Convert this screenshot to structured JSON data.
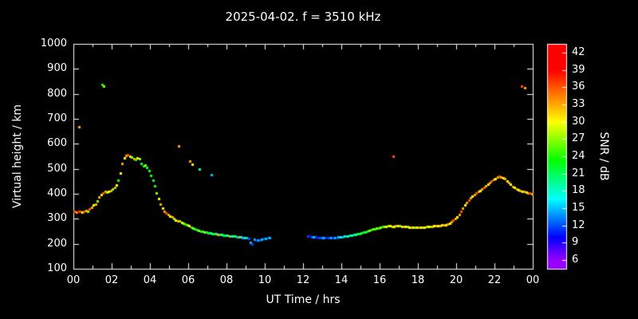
{
  "title": "2025-04-02. f = 3510 kHz",
  "colors": {
    "background": "#000000",
    "foreground": "#ffffff"
  },
  "chart_data": {
    "type": "scatter",
    "title": "2025-04-02. f = 3510 kHz",
    "xlabel": "UT Time / hrs",
    "ylabel": "Virtual height / km",
    "cblabel": "SNR / dB",
    "xlim": [
      0,
      24
    ],
    "ylim": [
      100,
      1000
    ],
    "grid": false,
    "legend": "colorbar-right",
    "x_ticks": [
      [
        0,
        "00"
      ],
      [
        2,
        "02"
      ],
      [
        4,
        "04"
      ],
      [
        6,
        "06"
      ],
      [
        8,
        "08"
      ],
      [
        10,
        "10"
      ],
      [
        12,
        "12"
      ],
      [
        14,
        "14"
      ],
      [
        16,
        "16"
      ],
      [
        18,
        "18"
      ],
      [
        20,
        "20"
      ],
      [
        22,
        "22"
      ],
      [
        24,
        "00"
      ]
    ],
    "x_minor_step": 1,
    "y_ticks": [
      [
        100,
        "100"
      ],
      [
        200,
        "200"
      ],
      [
        300,
        "300"
      ],
      [
        400,
        "400"
      ],
      [
        500,
        "500"
      ],
      [
        600,
        "600"
      ],
      [
        700,
        "700"
      ],
      [
        800,
        "800"
      ],
      [
        900,
        "900"
      ],
      [
        1000,
        "1000"
      ]
    ],
    "colorbar": {
      "min": 4.5,
      "max": 43.5,
      "ticks": [
        [
          6,
          "6"
        ],
        [
          9,
          "9"
        ],
        [
          12,
          "12"
        ],
        [
          15,
          "15"
        ],
        [
          18,
          "18"
        ],
        [
          21,
          "21"
        ],
        [
          24,
          "24"
        ],
        [
          27,
          "27"
        ],
        [
          30,
          "30"
        ],
        [
          33,
          "33"
        ],
        [
          36,
          "36"
        ],
        [
          39,
          "39"
        ],
        [
          42,
          "42"
        ]
      ]
    },
    "points": [
      [
        0.05,
        330,
        36
      ],
      [
        0.15,
        328,
        33
      ],
      [
        0.25,
        331,
        39
      ],
      [
        0.3,
        668,
        33
      ],
      [
        0.35,
        330,
        36
      ],
      [
        0.45,
        326,
        30
      ],
      [
        0.55,
        330,
        36
      ],
      [
        0.65,
        334,
        33
      ],
      [
        0.75,
        331,
        27
      ],
      [
        0.85,
        340,
        36
      ],
      [
        0.95,
        346,
        33
      ],
      [
        1.05,
        354,
        30
      ],
      [
        1.15,
        360,
        33
      ],
      [
        1.25,
        370,
        27
      ],
      [
        1.35,
        388,
        33
      ],
      [
        1.45,
        398,
        30
      ],
      [
        1.5,
        838,
        24
      ],
      [
        1.55,
        404,
        36
      ],
      [
        1.6,
        832,
        27
      ],
      [
        1.65,
        408,
        33
      ],
      [
        1.75,
        405,
        27
      ],
      [
        1.85,
        410,
        30
      ],
      [
        1.95,
        414,
        33
      ],
      [
        2.05,
        420,
        27
      ],
      [
        2.15,
        426,
        33
      ],
      [
        2.25,
        436,
        30
      ],
      [
        2.35,
        455,
        24
      ],
      [
        2.45,
        482,
        30
      ],
      [
        2.55,
        520,
        33
      ],
      [
        2.65,
        544,
        30
      ],
      [
        2.75,
        552,
        33
      ],
      [
        2.85,
        556,
        36
      ],
      [
        2.95,
        550,
        30
      ],
      [
        3.05,
        546,
        27
      ],
      [
        3.15,
        540,
        33
      ],
      [
        3.25,
        536,
        24
      ],
      [
        3.35,
        544,
        30
      ],
      [
        3.45,
        540,
        27
      ],
      [
        3.55,
        522,
        21
      ],
      [
        3.65,
        512,
        24
      ],
      [
        3.75,
        516,
        27
      ],
      [
        3.85,
        506,
        21
      ],
      [
        3.95,
        492,
        24
      ],
      [
        4.05,
        472,
        24
      ],
      [
        4.15,
        455,
        21
      ],
      [
        4.25,
        432,
        24
      ],
      [
        4.35,
        402,
        27
      ],
      [
        4.45,
        380,
        30
      ],
      [
        4.55,
        360,
        33
      ],
      [
        4.65,
        342,
        30
      ],
      [
        4.75,
        330,
        33
      ],
      [
        4.85,
        322,
        36
      ],
      [
        4.95,
        318,
        33
      ],
      [
        5.05,
        312,
        30
      ],
      [
        5.15,
        306,
        33
      ],
      [
        5.25,
        300,
        27
      ],
      [
        5.35,
        296,
        30
      ],
      [
        5.45,
        292,
        33
      ],
      [
        5.5,
        590,
        33
      ],
      [
        5.55,
        290,
        27
      ],
      [
        5.65,
        286,
        30
      ],
      [
        5.75,
        282,
        27
      ],
      [
        5.85,
        278,
        24
      ],
      [
        5.95,
        275,
        27
      ],
      [
        6.05,
        271,
        30
      ],
      [
        6.1,
        532,
        33
      ],
      [
        6.15,
        266,
        24
      ],
      [
        6.2,
        518,
        30
      ],
      [
        6.25,
        262,
        27
      ],
      [
        6.35,
        258,
        21
      ],
      [
        6.45,
        255,
        24
      ],
      [
        6.55,
        252,
        27
      ],
      [
        6.6,
        500,
        18
      ],
      [
        6.65,
        250,
        21
      ],
      [
        6.75,
        250,
        24
      ],
      [
        6.85,
        248,
        27
      ],
      [
        6.95,
        246,
        21
      ],
      [
        7.05,
        245,
        24
      ],
      [
        7.15,
        243,
        18
      ],
      [
        7.2,
        478,
        15
      ],
      [
        7.25,
        242,
        21
      ],
      [
        7.35,
        241,
        24
      ],
      [
        7.45,
        240,
        18
      ],
      [
        7.55,
        238,
        33
      ],
      [
        7.65,
        237,
        21
      ],
      [
        7.75,
        236,
        18
      ],
      [
        7.85,
        235,
        24
      ],
      [
        7.95,
        234,
        21
      ],
      [
        8.05,
        233,
        18
      ],
      [
        8.15,
        232,
        33
      ],
      [
        8.25,
        231,
        21
      ],
      [
        8.35,
        230,
        18
      ],
      [
        8.45,
        230,
        24
      ],
      [
        8.55,
        229,
        15
      ],
      [
        8.65,
        228,
        33
      ],
      [
        8.75,
        227,
        18
      ],
      [
        8.85,
        226,
        15
      ],
      [
        8.95,
        225,
        18
      ],
      [
        9.05,
        224,
        15
      ],
      [
        9.15,
        222,
        12
      ],
      [
        9.25,
        206,
        15
      ],
      [
        9.35,
        200,
        12
      ],
      [
        9.45,
        218,
        15
      ],
      [
        9.55,
        216,
        12
      ],
      [
        9.65,
        215,
        15
      ],
      [
        9.75,
        216,
        12
      ],
      [
        9.85,
        218,
        15
      ],
      [
        9.95,
        220,
        12
      ],
      [
        10.05,
        222,
        15
      ],
      [
        10.15,
        224,
        12
      ],
      [
        10.25,
        225,
        15
      ],
      [
        12.25,
        232,
        12
      ],
      [
        12.35,
        230,
        9
      ],
      [
        12.45,
        229,
        12
      ],
      [
        12.55,
        228,
        15
      ],
      [
        12.65,
        227,
        12
      ],
      [
        12.75,
        226,
        9
      ],
      [
        12.85,
        226,
        12
      ],
      [
        12.95,
        225,
        12
      ],
      [
        13.05,
        225,
        15
      ],
      [
        13.15,
        224,
        12
      ],
      [
        13.25,
        224,
        9
      ],
      [
        13.35,
        223,
        12
      ],
      [
        13.45,
        223,
        15
      ],
      [
        13.55,
        224,
        12
      ],
      [
        13.65,
        225,
        15
      ],
      [
        13.75,
        226,
        12
      ],
      [
        13.85,
        227,
        15
      ],
      [
        13.95,
        228,
        18
      ],
      [
        14.05,
        229,
        15
      ],
      [
        14.15,
        230,
        18
      ],
      [
        14.25,
        231,
        15
      ],
      [
        14.35,
        232,
        18
      ],
      [
        14.45,
        233,
        21
      ],
      [
        14.55,
        234,
        18
      ],
      [
        14.65,
        236,
        21
      ],
      [
        14.75,
        238,
        18
      ],
      [
        14.85,
        240,
        21
      ],
      [
        14.95,
        242,
        24
      ],
      [
        15.05,
        244,
        21
      ],
      [
        15.15,
        246,
        24
      ],
      [
        15.25,
        248,
        21
      ],
      [
        15.35,
        250,
        24
      ],
      [
        15.45,
        252,
        27
      ],
      [
        15.55,
        255,
        24
      ],
      [
        15.65,
        258,
        27
      ],
      [
        15.75,
        260,
        24
      ],
      [
        15.85,
        262,
        27
      ],
      [
        15.95,
        264,
        24
      ],
      [
        16.05,
        266,
        27
      ],
      [
        16.15,
        268,
        24
      ],
      [
        16.25,
        270,
        27
      ],
      [
        16.35,
        270,
        30
      ],
      [
        16.45,
        272,
        27
      ],
      [
        16.55,
        272,
        30
      ],
      [
        16.65,
        270,
        27
      ],
      [
        16.7,
        550,
        36
      ],
      [
        16.75,
        270,
        30
      ],
      [
        16.85,
        272,
        33
      ],
      [
        16.95,
        272,
        30
      ],
      [
        17.05,
        272,
        27
      ],
      [
        17.15,
        270,
        30
      ],
      [
        17.25,
        270,
        33
      ],
      [
        17.35,
        268,
        30
      ],
      [
        17.45,
        268,
        27
      ],
      [
        17.55,
        267,
        30
      ],
      [
        17.65,
        266,
        33
      ],
      [
        17.75,
        266,
        30
      ],
      [
        17.85,
        265,
        27
      ],
      [
        17.95,
        265,
        30
      ],
      [
        18.05,
        265,
        33
      ],
      [
        18.15,
        266,
        30
      ],
      [
        18.25,
        266,
        27
      ],
      [
        18.35,
        267,
        30
      ],
      [
        18.45,
        268,
        33
      ],
      [
        18.55,
        268,
        30
      ],
      [
        18.65,
        270,
        27
      ],
      [
        18.75,
        270,
        33
      ],
      [
        18.85,
        271,
        30
      ],
      [
        18.95,
        272,
        33
      ],
      [
        19.05,
        272,
        30
      ],
      [
        19.15,
        273,
        33
      ],
      [
        19.25,
        274,
        30
      ],
      [
        19.35,
        275,
        33
      ],
      [
        19.45,
        276,
        30
      ],
      [
        19.55,
        278,
        33
      ],
      [
        19.65,
        282,
        30
      ],
      [
        19.75,
        288,
        33
      ],
      [
        19.85,
        294,
        36
      ],
      [
        19.95,
        300,
        33
      ],
      [
        20.05,
        308,
        30
      ],
      [
        20.15,
        318,
        33
      ],
      [
        20.25,
        330,
        36
      ],
      [
        20.35,
        342,
        33
      ],
      [
        20.45,
        355,
        30
      ],
      [
        20.55,
        365,
        33
      ],
      [
        20.65,
        375,
        36
      ],
      [
        20.75,
        385,
        33
      ],
      [
        20.85,
        392,
        30
      ],
      [
        20.95,
        398,
        33
      ],
      [
        21.05,
        402,
        36
      ],
      [
        21.15,
        408,
        33
      ],
      [
        21.25,
        412,
        30
      ],
      [
        21.35,
        418,
        33
      ],
      [
        21.45,
        425,
        36
      ],
      [
        21.55,
        432,
        33
      ],
      [
        21.65,
        438,
        30
      ],
      [
        21.75,
        444,
        33
      ],
      [
        21.85,
        450,
        36
      ],
      [
        21.95,
        456,
        33
      ],
      [
        22.05,
        462,
        30
      ],
      [
        22.15,
        466,
        33
      ],
      [
        22.25,
        470,
        36
      ],
      [
        22.35,
        468,
        33
      ],
      [
        22.45,
        465,
        30
      ],
      [
        22.55,
        460,
        33
      ],
      [
        22.65,
        452,
        30
      ],
      [
        22.75,
        445,
        33
      ],
      [
        22.85,
        438,
        30
      ],
      [
        22.95,
        430,
        33
      ],
      [
        23.05,
        424,
        30
      ],
      [
        23.15,
        420,
        33
      ],
      [
        23.25,
        416,
        30
      ],
      [
        23.35,
        412,
        33
      ],
      [
        23.4,
        832,
        36
      ],
      [
        23.45,
        410,
        30
      ],
      [
        23.55,
        408,
        33
      ],
      [
        23.6,
        826,
        33
      ],
      [
        23.65,
        405,
        30
      ],
      [
        23.75,
        403,
        33
      ],
      [
        23.85,
        402,
        36
      ],
      [
        23.95,
        400,
        33
      ]
    ]
  }
}
